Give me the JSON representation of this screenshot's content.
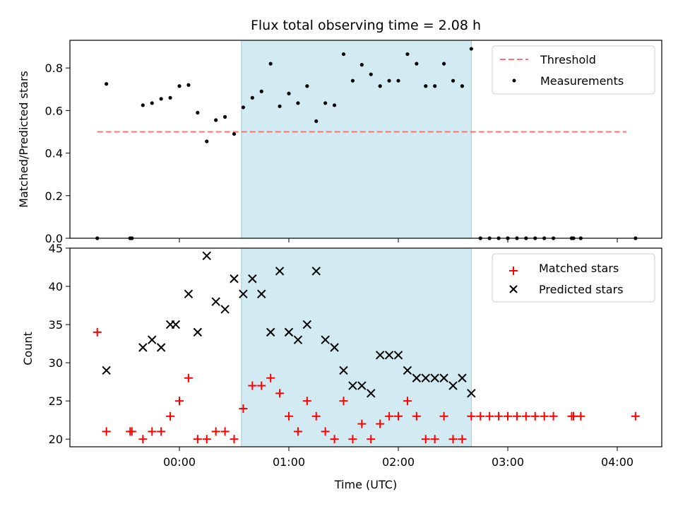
{
  "chart_data": {
    "title": "Flux total observing time = 2.08 h",
    "xlabel": "Time (UTC)",
    "x_ticks": [
      "00:00",
      "01:00",
      "02:00",
      "03:00",
      "04:00"
    ],
    "shaded_region": {
      "x_start": "00:34",
      "x_end": "02:40",
      "color": "#add8e6"
    },
    "panels": [
      {
        "type": "scatter",
        "ylabel": "Matched/Predicted stars",
        "ylim": [
          0,
          0.93
        ],
        "y_ticks": [
          "0.0",
          "0.2",
          "0.4",
          "0.6",
          "0.8"
        ],
        "legend_position": "top-right",
        "threshold": {
          "name": "Threshold",
          "value": 0.5,
          "x_start": "-00:45",
          "x_end": "04:05",
          "color": "#ff6666",
          "style": "dashed"
        },
        "series": [
          {
            "name": "Measurements",
            "marker": "dot",
            "color": "#000000",
            "points": [
              [
                "-00:45",
                0.0
              ],
              [
                "-00:40",
                0.725
              ],
              [
                "-00:27",
                0.0
              ],
              [
                "-00:26",
                0.0
              ],
              [
                "-00:20",
                0.625
              ],
              [
                "-00:15",
                0.635
              ],
              [
                "-00:10",
                0.655
              ],
              [
                "-00:05",
                0.66
              ],
              [
                "00:00",
                0.715
              ],
              [
                "00:05",
                0.72
              ],
              [
                "00:10",
                0.59
              ],
              [
                "00:15",
                0.455
              ],
              [
                "00:20",
                0.555
              ],
              [
                "00:25",
                0.57
              ],
              [
                "00:30",
                0.49
              ],
              [
                "00:35",
                0.615
              ],
              [
                "00:40",
                0.66
              ],
              [
                "00:45",
                0.69
              ],
              [
                "00:50",
                0.82
              ],
              [
                "00:55",
                0.62
              ],
              [
                "01:00",
                0.68
              ],
              [
                "01:05",
                0.635
              ],
              [
                "01:10",
                0.715
              ],
              [
                "01:15",
                0.55
              ],
              [
                "01:20",
                0.635
              ],
              [
                "01:25",
                0.625
              ],
              [
                "01:30",
                0.865
              ],
              [
                "01:35",
                0.74
              ],
              [
                "01:40",
                0.815
              ],
              [
                "01:45",
                0.77
              ],
              [
                "01:50",
                0.715
              ],
              [
                "01:55",
                0.74
              ],
              [
                "02:00",
                0.74
              ],
              [
                "02:05",
                0.865
              ],
              [
                "02:10",
                0.82
              ],
              [
                "02:15",
                0.715
              ],
              [
                "02:20",
                0.715
              ],
              [
                "02:25",
                0.82
              ],
              [
                "02:30",
                0.74
              ],
              [
                "02:35",
                0.715
              ],
              [
                "02:40",
                0.89
              ],
              [
                "02:45",
                0.0
              ],
              [
                "02:50",
                0.0
              ],
              [
                "02:55",
                0.0
              ],
              [
                "03:00",
                0.0
              ],
              [
                "03:05",
                0.0
              ],
              [
                "03:10",
                0.0
              ],
              [
                "03:15",
                0.0
              ],
              [
                "03:20",
                0.0
              ],
              [
                "03:25",
                0.0
              ],
              [
                "03:35",
                0.0
              ],
              [
                "03:36",
                0.0
              ],
              [
                "03:40",
                0.0
              ],
              [
                "04:10",
                0.0
              ]
            ]
          }
        ]
      },
      {
        "type": "scatter",
        "ylabel": "Count",
        "ylim": [
          19,
          45
        ],
        "y_ticks": [
          "20",
          "25",
          "30",
          "35",
          "40",
          "45"
        ],
        "legend_position": "top-right",
        "series": [
          {
            "name": "Matched stars",
            "marker": "plus",
            "color": "#ff0000",
            "points": [
              [
                "-00:45",
                34
              ],
              [
                "-00:40",
                21
              ],
              [
                "-00:27",
                21
              ],
              [
                "-00:26",
                21
              ],
              [
                "-00:20",
                20
              ],
              [
                "-00:15",
                21
              ],
              [
                "-00:10",
                21
              ],
              [
                "-00:05",
                23
              ],
              [
                "00:00",
                25
              ],
              [
                "00:05",
                28
              ],
              [
                "00:10",
                20
              ],
              [
                "00:15",
                20
              ],
              [
                "00:20",
                21
              ],
              [
                "00:25",
                21
              ],
              [
                "00:30",
                20
              ],
              [
                "00:35",
                24
              ],
              [
                "00:40",
                27
              ],
              [
                "00:45",
                27
              ],
              [
                "00:50",
                28
              ],
              [
                "00:55",
                26
              ],
              [
                "01:00",
                23
              ],
              [
                "01:05",
                21
              ],
              [
                "01:10",
                25
              ],
              [
                "01:15",
                23
              ],
              [
                "01:20",
                21
              ],
              [
                "01:25",
                20
              ],
              [
                "01:30",
                25
              ],
              [
                "01:35",
                20
              ],
              [
                "01:40",
                22
              ],
              [
                "01:45",
                20
              ],
              [
                "01:50",
                22
              ],
              [
                "01:55",
                23
              ],
              [
                "02:00",
                23
              ],
              [
                "02:05",
                25
              ],
              [
                "02:10",
                23
              ],
              [
                "02:15",
                20
              ],
              [
                "02:20",
                20
              ],
              [
                "02:25",
                23
              ],
              [
                "02:30",
                20
              ],
              [
                "02:35",
                20
              ],
              [
                "02:40",
                23
              ],
              [
                "02:45",
                23
              ],
              [
                "02:50",
                23
              ],
              [
                "02:55",
                23
              ],
              [
                "03:00",
                23
              ],
              [
                "03:05",
                23
              ],
              [
                "03:10",
                23
              ],
              [
                "03:15",
                23
              ],
              [
                "03:20",
                23
              ],
              [
                "03:25",
                23
              ],
              [
                "03:35",
                23
              ],
              [
                "03:36",
                23
              ],
              [
                "03:40",
                23
              ],
              [
                "04:10",
                23
              ]
            ]
          },
          {
            "name": "Predicted stars",
            "marker": "x",
            "color": "#000000",
            "points": [
              [
                "-00:40",
                29
              ],
              [
                "-00:20",
                32
              ],
              [
                "-00:15",
                33
              ],
              [
                "-00:10",
                32
              ],
              [
                "-00:05",
                35
              ],
              [
                "-00:02",
                35
              ],
              [
                "00:05",
                39
              ],
              [
                "00:10",
                34
              ],
              [
                "00:15",
                44
              ],
              [
                "00:20",
                38
              ],
              [
                "00:25",
                37
              ],
              [
                "00:30",
                41
              ],
              [
                "00:35",
                39
              ],
              [
                "00:40",
                41
              ],
              [
                "00:45",
                39
              ],
              [
                "00:50",
                34
              ],
              [
                "00:55",
                42
              ],
              [
                "01:00",
                34
              ],
              [
                "01:05",
                33
              ],
              [
                "01:10",
                35
              ],
              [
                "01:15",
                42
              ],
              [
                "01:20",
                33
              ],
              [
                "01:25",
                32
              ],
              [
                "01:30",
                29
              ],
              [
                "01:35",
                27
              ],
              [
                "01:40",
                27
              ],
              [
                "01:45",
                26
              ],
              [
                "01:50",
                31
              ],
              [
                "01:55",
                31
              ],
              [
                "02:00",
                31
              ],
              [
                "02:05",
                29
              ],
              [
                "02:10",
                28
              ],
              [
                "02:15",
                28
              ],
              [
                "02:20",
                28
              ],
              [
                "02:25",
                28
              ],
              [
                "02:30",
                27
              ],
              [
                "02:35",
                28
              ],
              [
                "02:40",
                26
              ]
            ]
          }
        ]
      }
    ]
  }
}
